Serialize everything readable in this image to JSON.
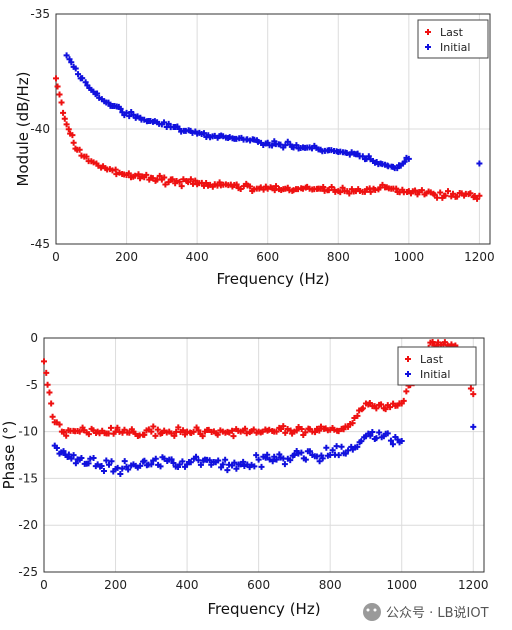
{
  "colors": {
    "last": "#ee1111",
    "initial": "#1111dd",
    "grid": "#dcdcdc",
    "frame": "#333333"
  },
  "watermark": {
    "text": "公众号 · LB说IOT",
    "icon": "wechat-icon"
  },
  "chart_data": [
    {
      "type": "scatter",
      "xlabel": "Frequency (Hz)",
      "ylabel": "Module (dB/Hz)",
      "xlim": [
        0,
        1230
      ],
      "ylim": [
        -45,
        -35
      ],
      "xticks": [
        0,
        200,
        400,
        600,
        800,
        1000,
        1200
      ],
      "yticks": [
        -35,
        -40,
        -45
      ],
      "grid": true,
      "legend": "top-right",
      "series": [
        {
          "name": "Last",
          "color": "#ee1111",
          "x": [
            0,
            10,
            20,
            30,
            40,
            50,
            60,
            80,
            100,
            120,
            140,
            160,
            180,
            200,
            250,
            300,
            350,
            400,
            450,
            500,
            550,
            600,
            650,
            700,
            750,
            800,
            850,
            900,
            950,
            1000,
            1050,
            1100,
            1150,
            1200
          ],
          "y": [
            -37.8,
            -38.5,
            -39.3,
            -39.8,
            -40.2,
            -40.6,
            -40.9,
            -41.2,
            -41.4,
            -41.6,
            -41.7,
            -41.8,
            -41.9,
            -42.0,
            -42.1,
            -42.2,
            -42.3,
            -42.4,
            -42.4,
            -42.5,
            -42.5,
            -42.6,
            -42.6,
            -42.6,
            -42.6,
            -42.7,
            -42.7,
            -42.6,
            -42.6,
            -42.7,
            -42.8,
            -42.9,
            -42.8,
            -42.9
          ]
        },
        {
          "name": "Initial",
          "color": "#1111dd",
          "x": [
            30,
            50,
            70,
            100,
            130,
            160,
            200,
            250,
            300,
            350,
            400,
            450,
            500,
            550,
            600,
            650,
            700,
            750,
            800,
            850,
            880,
            920,
            960,
            1000,
            1200
          ],
          "y": [
            -36.8,
            -37.3,
            -37.8,
            -38.3,
            -38.7,
            -39.0,
            -39.3,
            -39.6,
            -39.8,
            -40.0,
            -40.2,
            -40.3,
            -40.4,
            -40.5,
            -40.6,
            -40.7,
            -40.8,
            -40.9,
            -41.0,
            -41.1,
            -41.3,
            -41.5,
            -41.7,
            -41.3,
            -41.5
          ]
        }
      ]
    },
    {
      "type": "scatter",
      "xlabel": "Frequency (Hz)",
      "ylabel": "Phase (°)",
      "xlim": [
        0,
        1230
      ],
      "ylim": [
        -25,
        0
      ],
      "xticks": [
        0,
        200,
        400,
        600,
        800,
        1000,
        1200
      ],
      "yticks": [
        0,
        -5,
        -10,
        -15,
        -20,
        -25
      ],
      "grid": true,
      "legend": "top-right",
      "series": [
        {
          "name": "Last",
          "color": "#ee1111",
          "x": [
            0,
            10,
            20,
            30,
            50,
            100,
            150,
            200,
            250,
            300,
            350,
            400,
            450,
            500,
            550,
            600,
            650,
            700,
            750,
            800,
            850,
            900,
            950,
            1000,
            1050,
            1080,
            1150,
            1200
          ],
          "y": [
            -2.5,
            -5.0,
            -7.0,
            -9.0,
            -10.0,
            -10.0,
            -10.0,
            -10.0,
            -10.0,
            -10.0,
            -10.0,
            -10.0,
            -10.0,
            -10.0,
            -10.0,
            -10.0,
            -10.0,
            -10.0,
            -10.0,
            -9.8,
            -9.5,
            -7.0,
            -7.5,
            -7.0,
            -3.0,
            -0.5,
            -0.8,
            -6.0
          ]
        },
        {
          "name": "Initial",
          "color": "#1111dd",
          "x": [
            30,
            60,
            100,
            150,
            200,
            250,
            300,
            350,
            400,
            450,
            500,
            550,
            600,
            650,
            700,
            750,
            800,
            850,
            900,
            950,
            1000,
            1200
          ],
          "y": [
            -11.5,
            -12.5,
            -13.0,
            -13.5,
            -14.0,
            -13.5,
            -13.5,
            -13.0,
            -13.5,
            -13.0,
            -13.5,
            -13.5,
            -13.0,
            -13.0,
            -12.5,
            -12.5,
            -12.5,
            -12.0,
            -10.5,
            -10.5,
            -11.0,
            -9.5
          ]
        }
      ]
    }
  ]
}
